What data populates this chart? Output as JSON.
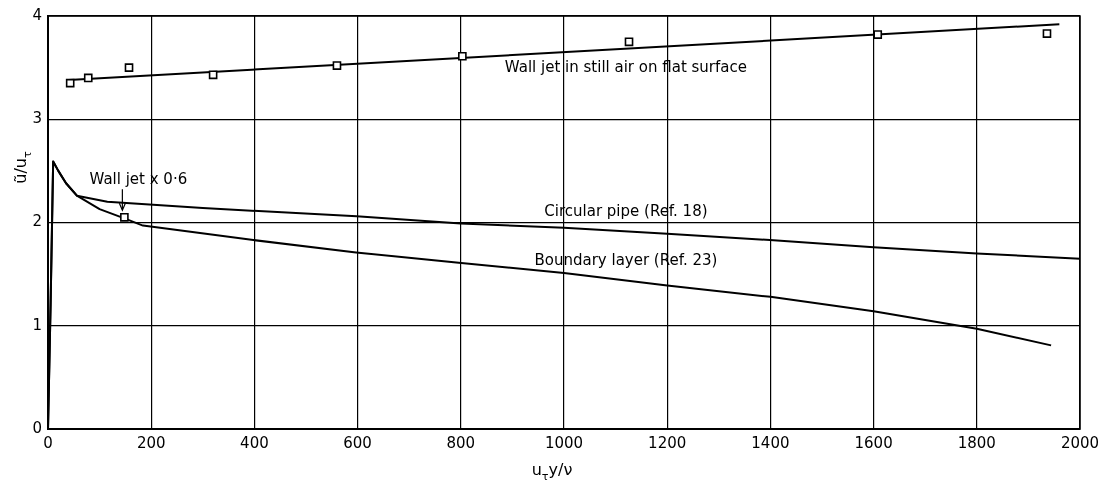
{
  "chart_data": {
    "type": "line",
    "xlabel": "u$_{τ}$y/ν",
    "ylabel": "ũ/u$_{τ}$",
    "xlim": [
      0,
      2000
    ],
    "xticks": [
      0,
      200,
      400,
      600,
      800,
      1000,
      1200,
      1400,
      1600,
      1800,
      2000
    ],
    "ylim": [
      0,
      4
    ],
    "yticks": [
      0,
      1,
      2,
      3,
      4
    ],
    "grid": true,
    "legend": false,
    "series": [
      {
        "type": "scatter",
        "marker": "square",
        "color": "#000000",
        "x": [
          43,
          78,
          157,
          320,
          560,
          803,
          1126,
          1608,
          1936
        ],
        "values": [
          3.35,
          3.4,
          3.5,
          3.43,
          3.52,
          3.61,
          3.75,
          3.82,
          3.83
        ]
      },
      {
        "name": "Wall jet in still air on flat surface",
        "marker": "none",
        "color": "#000000",
        "x": [
          40,
          1960
        ],
        "values": [
          3.38,
          3.92
        ]
      },
      {
        "name": "Circular pipe (Ref. 18)",
        "marker": "none",
        "color": "#000000",
        "x": [
          0,
          5,
          10,
          20,
          35,
          56,
          115,
          300,
          598,
          800,
          1000,
          1200,
          1399,
          1600,
          1800,
          2000
        ],
        "values": [
          0,
          1.2,
          2.59,
          2.5,
          2.38,
          2.26,
          2.2,
          2.14,
          2.06,
          1.99,
          1.95,
          1.89,
          1.83,
          1.76,
          1.7,
          1.65
        ]
      },
      {
        "name": "Boundary layer (Ref. 23)",
        "marker": "none",
        "color": "#000000",
        "x": [
          0,
          5,
          10,
          20,
          35,
          56,
          100,
          148,
          184,
          398,
          597,
          796,
          1000,
          1200,
          1400,
          1600,
          1800,
          1944
        ],
        "values": [
          0,
          1.2,
          2.59,
          2.5,
          2.38,
          2.26,
          2.13,
          2.04,
          1.97,
          1.83,
          1.71,
          1.61,
          1.51,
          1.39,
          1.28,
          1.14,
          0.97,
          0.81
        ]
      },
      {
        "type": "scatter",
        "name": "Wall jet x 0·6",
        "marker": "square",
        "color": "#000000",
        "x": [
          148
        ],
        "values": [
          2.05
        ]
      }
    ]
  }
}
